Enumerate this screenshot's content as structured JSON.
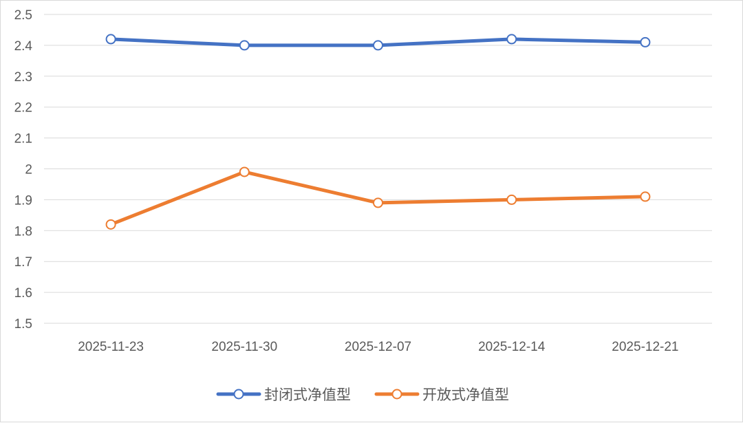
{
  "chart_data": {
    "type": "line",
    "title": "",
    "xlabel": "",
    "ylabel": "",
    "categories": [
      "2025-11-23",
      "2025-11-30",
      "2025-12-07",
      "2025-12-14",
      "2025-12-21"
    ],
    "ylim": [
      1.5,
      2.5
    ],
    "yticks": [
      "1.5",
      "1.6",
      "1.7",
      "1.8",
      "1.9",
      "2",
      "2.1",
      "2.2",
      "2.3",
      "2.4",
      "2.5"
    ],
    "grid": true,
    "legend_position": "bottom",
    "series": [
      {
        "name": "封闭式净值型",
        "color": "#4472c4",
        "values": [
          2.42,
          2.4,
          2.4,
          2.42,
          2.41
        ]
      },
      {
        "name": "开放式净值型",
        "color": "#ed7d31",
        "values": [
          1.82,
          1.99,
          1.89,
          1.9,
          1.91
        ]
      }
    ]
  }
}
